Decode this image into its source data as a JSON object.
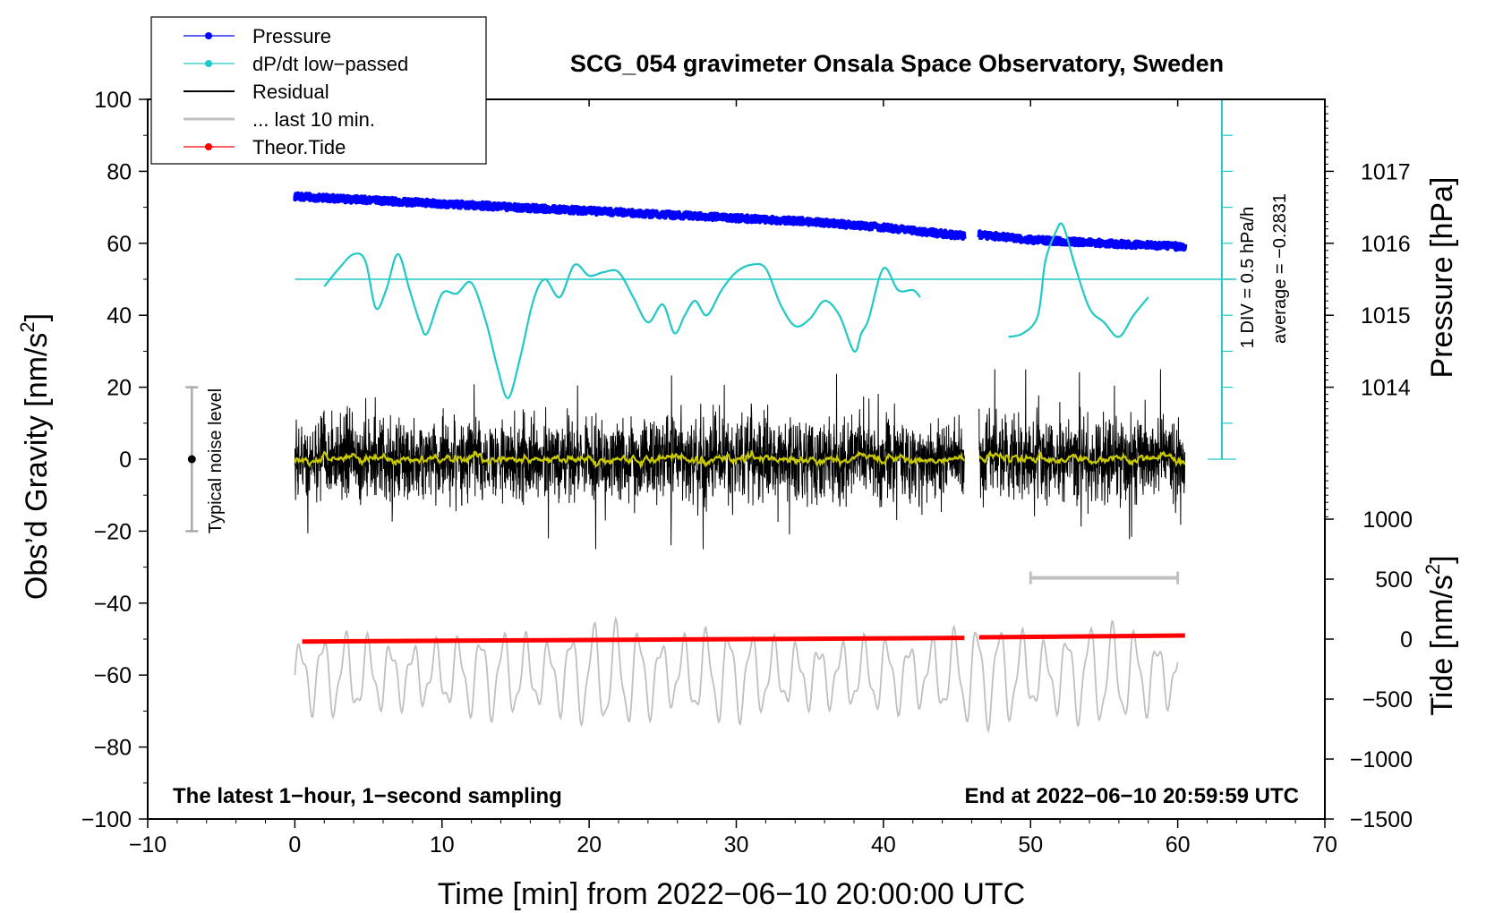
{
  "chart_data": {
    "type": "line",
    "title": "SCG_054 gravimeter Onsala Space Observatory, Sweden",
    "xlabel": "Time [min] from 2022−06−10 20:00:00 UTC",
    "ylabel_left": "Obs’d Gravity [nm/s",
    "ylabel_left_sup": "2",
    "ylabel_left_end": "]",
    "ylabel_right_pressure": "Pressure [hPa]",
    "ylabel_right_tide": "Tide [nm/s",
    "ylabel_right_tide_sup": "2",
    "ylabel_right_tide_end": "]",
    "xlim": [
      -10,
      70
    ],
    "ylim_left": [
      -100,
      100
    ],
    "x_ticks": [
      -10,
      0,
      10,
      20,
      30,
      40,
      50,
      60,
      70
    ],
    "x_tick_labels": [
      "−10",
      "0",
      "10",
      "20",
      "30",
      "40",
      "50",
      "60",
      "70"
    ],
    "y_ticks_left": [
      -100,
      -80,
      -60,
      -40,
      -20,
      0,
      20,
      40,
      60,
      80,
      100
    ],
    "y_tick_labels_left": [
      "−100",
      "−80",
      "−60",
      "−40",
      "−20",
      "0",
      "20",
      "40",
      "60",
      "80",
      "100"
    ],
    "pressure_axis": {
      "ticks": [
        1014,
        1015,
        1016,
        1017
      ],
      "labels": [
        "1014",
        "1015",
        "1016",
        "1017"
      ],
      "gravity_at_1014": 20,
      "gravity_per_hpa": 20
    },
    "tide_axis": {
      "ticks": [
        -1500,
        -1000,
        -500,
        0,
        500,
        1000
      ],
      "labels": [
        "−1500",
        "−1000",
        "−500",
        "0",
        "500",
        "1000"
      ],
      "gravity_at_minus_1500": -100,
      "gravity_per_nms2": 0.03333
    },
    "legend": {
      "placement": "top-left",
      "entries": [
        {
          "label": "Pressure",
          "color": "#0000ff",
          "marker": true
        },
        {
          "label": "dP/dt low−passed",
          "color": "#20c8c8",
          "marker": true
        },
        {
          "label": "Residual",
          "color": "#000000",
          "marker": false
        },
        {
          "label": "... last 10 min.",
          "color": "#c0c0c0",
          "marker": false
        },
        {
          "label": "Theor.Tide",
          "color": "#ff0000",
          "marker": true
        }
      ]
    },
    "annotations": {
      "bottom_left": "The latest 1−hour, 1−second sampling",
      "bottom_right": "End at 2022−06−10 20:59:59 UTC",
      "noise_label": "Typical noise level",
      "div_label": "1 DIV = 0.5 hPa/h",
      "average_label": "average = −0.2831"
    },
    "noise_bar": {
      "x": -7,
      "low": -20,
      "high": 20,
      "center": 0
    },
    "dpdt_scale": {
      "x": 63,
      "low": 0,
      "high": 100,
      "baseline": 50
    },
    "last10_bar": {
      "x_start": 50,
      "x_end": 60,
      "y": -33
    },
    "series": [
      {
        "name": "Pressure",
        "color": "#0000ff",
        "x": [
          0,
          5,
          10,
          15,
          20,
          25,
          30,
          35,
          40,
          45.5,
          46.5,
          50,
          55,
          60.5
        ],
        "y": [
          1016.65,
          1016.6,
          1016.55,
          1016.5,
          1016.45,
          1016.4,
          1016.35,
          1016.3,
          1016.22,
          1016.1,
          1016.12,
          1016.05,
          1016.0,
          1015.95
        ],
        "gap_after_index": 9
      },
      {
        "name": "dP/dt low-passed",
        "color": "#20c8c8",
        "segments": [
          {
            "x": [
              2,
              3,
              4,
              4.8,
              5.5,
              6.2,
              7,
              7.8,
              8.5,
              9,
              10,
              11,
              12,
              13,
              13.8,
              14.5,
              15.3,
              16.2,
              17,
              18,
              19,
              20,
              21,
              22,
              23,
              24,
              25,
              25.8,
              26.5,
              27.2,
              28,
              29,
              30,
              31,
              32,
              33,
              34,
              35,
              36,
              37,
              38,
              38.5,
              39,
              40,
              41,
              42,
              42.5
            ],
            "y": [
              48,
              53,
              57,
              55,
              42,
              47,
              57,
              47,
              38,
              35,
              46,
              46,
              49,
              38,
              25,
              17,
              28,
              44,
              50,
              45,
              54,
              51,
              52,
              52,
              45,
              38,
              43,
              35,
              40,
              44,
              40,
              47,
              52,
              54,
              53,
              43,
              37,
              39,
              44,
              40,
              30,
              35,
              39,
              53,
              47,
              47,
              45
            ]
          },
          {
            "x": [
              48.5,
              49.5,
              50.5,
              51,
              51.7,
              52.2,
              53,
              54,
              55,
              56,
              57,
              58
            ],
            "y": [
              34,
              35,
              40,
              55,
              63,
              65,
              54,
              42,
              38,
              34,
              40,
              45
            ]
          }
        ]
      },
      {
        "name": "Residual",
        "color": "#000000",
        "x_range": [
          0,
          60.5
        ],
        "gap": [
          45.5,
          46.5
        ],
        "amplitude_typical": 10,
        "amplitude_peak": 25,
        "smoothed_color": "#c8c800"
      },
      {
        "name": "... last 10 min.",
        "color": "#c0c0c0",
        "x_range": [
          0,
          60
        ],
        "center": -60,
        "amplitude_typical": 10,
        "amplitude_peak": 20
      },
      {
        "name": "Theor.Tide",
        "color": "#ff0000",
        "x": [
          0.5,
          45.5,
          46.5,
          60.5
        ],
        "y_tide": [
          -20,
          10,
          15,
          30
        ],
        "gap_after_index": 1
      }
    ]
  }
}
